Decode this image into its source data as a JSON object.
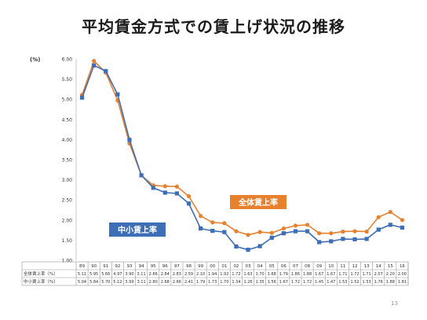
{
  "slide": {
    "title": "平均賃金方式での賃上げ状況の推移",
    "page_number": "13"
  },
  "chart_data": {
    "type": "line",
    "ylabel": "(%)",
    "ylim": [
      1.0,
      6.0
    ],
    "yticks": [
      "6.00",
      "5.50",
      "5.00",
      "4.50",
      "4.00",
      "3.50",
      "3.00",
      "2.50",
      "2.00",
      "1.50",
      "1.00"
    ],
    "categories": [
      "89",
      "90",
      "91",
      "92",
      "93",
      "94",
      "95",
      "96",
      "97",
      "98",
      "99",
      "00",
      "01",
      "02",
      "03",
      "04",
      "05",
      "06",
      "07",
      "08",
      "09",
      "10",
      "11",
      "12",
      "13",
      "14",
      "15",
      "16"
    ],
    "grid": false,
    "series": [
      {
        "name": "全体賃上率",
        "table_label": "全体賃上率（%）",
        "color": "#E8812E",
        "marker": "circle",
        "values": [
          5.11,
          5.95,
          5.66,
          4.97,
          3.9,
          3.11,
          2.86,
          2.84,
          2.83,
          2.59,
          2.1,
          1.94,
          1.92,
          1.72,
          1.63,
          1.7,
          1.68,
          1.79,
          1.86,
          1.88,
          1.67,
          1.67,
          1.71,
          1.72,
          1.71,
          2.07,
          2.2,
          2.0
        ],
        "table_values": [
          "5.11",
          "5.95",
          "5.66",
          "4.97",
          "3.90",
          "3.11",
          "2.86",
          "2.84",
          "2.83",
          "2.59",
          "2.10",
          "1.94",
          "1.92",
          "1.72",
          "1.63",
          "1.70",
          "1.68",
          "1.79",
          "1.86",
          "1.88",
          "1.67",
          "1.67",
          "1.71",
          "1.72",
          "1.71",
          "2.07",
          "2.20",
          "2.00"
        ]
      },
      {
        "name": "中小賃上率",
        "table_label": "中小賃上率（%）",
        "color": "#3E6EB5",
        "marker": "square",
        "values": [
          5.04,
          5.84,
          5.7,
          5.12,
          3.99,
          3.11,
          2.8,
          2.68,
          2.66,
          2.41,
          1.79,
          1.73,
          1.7,
          1.34,
          1.26,
          1.35,
          1.56,
          1.67,
          1.72,
          1.72,
          1.45,
          1.47,
          1.53,
          1.52,
          1.53,
          1.76,
          1.88,
          1.81
        ],
        "table_values": [
          "5.04",
          "5.84",
          "5.70",
          "5.12",
          "3.99",
          "3.11",
          "2.80",
          "2.68",
          "2.66",
          "2.41",
          "1.79",
          "1.73",
          "1.70",
          "1.34",
          "1.26",
          "1.35",
          "1.56",
          "1.67",
          "1.72",
          "1.72",
          "1.45",
          "1.47",
          "1.53",
          "1.52",
          "1.53",
          "1.76",
          "1.88",
          "1.81"
        ]
      }
    ],
    "annotations": [
      {
        "text": "全体賃上率",
        "series": "全体賃上率",
        "color": "#E8812E"
      },
      {
        "text": "中小賃上率",
        "series": "中小賃上率",
        "color": "#3E6EB5"
      }
    ]
  }
}
